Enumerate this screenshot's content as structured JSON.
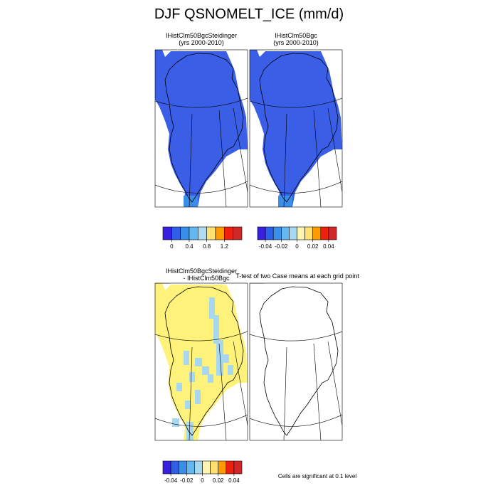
{
  "title": "DJF QSNOMELT_ICE (mm/d)",
  "panels": [
    {
      "title": "IHistClm50BgcSteidinger",
      "subtitle": "(yrs 2000-2010)",
      "fill": "#3a5ee6"
    },
    {
      "title": "IHistClm50Bgc",
      "subtitle": "(yrs 2000-2010)",
      "fill": "#3a5ee6"
    },
    {
      "title": "IHistClm50BgcSteidinger",
      "subtitle": "- IHistClm50Bgc",
      "fill": "#fff27a"
    },
    {
      "title": "T-test of two Case means at each grid point"
    }
  ],
  "colorbars": [
    {
      "colors": [
        "#3a1fe0",
        "#2f5fe6",
        "#3a8ee8",
        "#63b8f0",
        "#b0dcf0",
        "#ffe070",
        "#ff9a00",
        "#f02010",
        "#d02828"
      ],
      "lim": [
        -0.2,
        1.6
      ],
      "ticks": [
        0,
        0.4,
        0.8,
        1.2
      ]
    },
    {
      "colors": [
        "#3a1fe0",
        "#2f5fe6",
        "#3a8ee8",
        "#63b8f0",
        "#a8d8f0",
        "#fff5b0",
        "#ffe070",
        "#ff9a00",
        "#f02010",
        "#d02828"
      ],
      "lim": [
        -0.05,
        0.05
      ],
      "ticks": [
        -0.04,
        -0.02,
        0,
        0.02,
        0.04
      ]
    },
    {
      "colors": [
        "#3a1fe0",
        "#2f5fe6",
        "#3a8ee8",
        "#63b8f0",
        "#a8d8f0",
        "#fff5b0",
        "#ffe070",
        "#ff9a00",
        "#f02010",
        "#d02828"
      ],
      "lim": [
        -0.05,
        0.05
      ],
      "ticks": [
        -0.04,
        -0.02,
        0,
        0.02,
        0.04
      ]
    }
  ],
  "note": "Cells are significant at 0.1 level"
}
